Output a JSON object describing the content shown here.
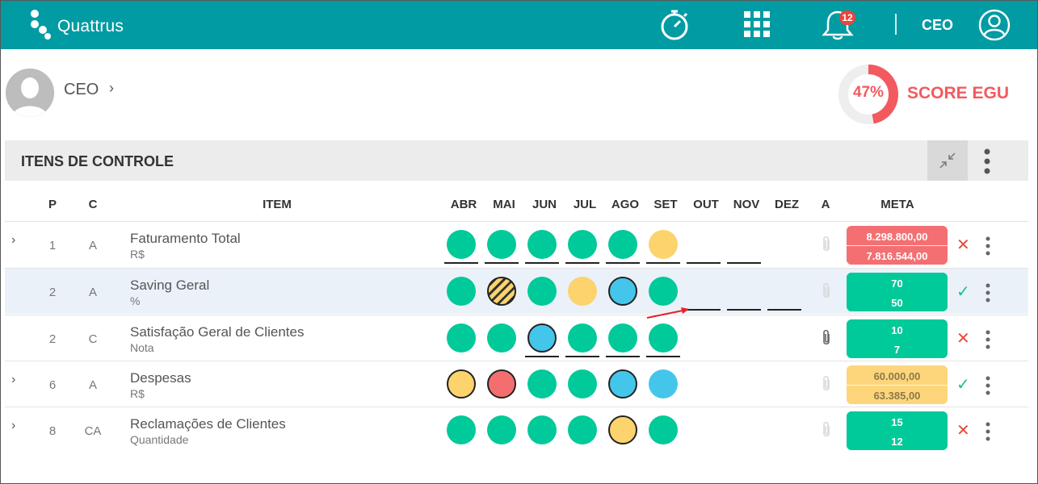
{
  "header": {
    "app_name": "Quattrus",
    "notification_count": "12",
    "role": "CEO",
    "colors": {
      "bar": "#009ba3"
    }
  },
  "profile": {
    "name": "CEO"
  },
  "score": {
    "percent": 47,
    "percent_label": "47%",
    "label": "SCORE EGU",
    "color": "#f25a5f"
  },
  "section": {
    "title": "ITENS DE CONTROLE"
  },
  "table": {
    "headers": {
      "p": "P",
      "c": "C",
      "item": "ITEM",
      "months": [
        "ABR",
        "MAI",
        "JUN",
        "JUL",
        "AGO",
        "SET",
        "OUT",
        "NOV",
        "DEZ"
      ],
      "a": "A",
      "meta": "META"
    },
    "colors": {
      "green": "#00c99a",
      "yellow": "#fcd36c",
      "blue": "#44c6ea",
      "red": "#f36e6e",
      "meta_red": "#f46f72",
      "meta_green": "#00c99a",
      "meta_yellow": "#fdd57a"
    },
    "rows": [
      {
        "expand": "›",
        "p": "1",
        "c": "A",
        "name": "Faturamento Total",
        "unit": "R$",
        "months": [
          "green",
          "green",
          "green",
          "green",
          "green",
          "yellow",
          "",
          "",
          ""
        ],
        "bordered": [
          false,
          false,
          false,
          false,
          false,
          false
        ],
        "underlined": [
          true,
          true,
          true,
          true,
          true,
          true,
          true,
          true,
          false
        ],
        "clip_active": false,
        "meta": {
          "v1": "8.298.800,00",
          "v2": "7.816.544,00",
          "color": "meta_red"
        },
        "status": "✕",
        "status_color": "#e74c3c"
      },
      {
        "expand": "",
        "p": "2",
        "c": "A",
        "name": "Saving Geral",
        "unit": "%",
        "months": [
          "green",
          "striped",
          "green",
          "yellow",
          "blue",
          "green",
          "",
          "",
          ""
        ],
        "bordered": [
          false,
          true,
          false,
          false,
          true,
          false
        ],
        "underlined": [
          false,
          false,
          false,
          false,
          false,
          false,
          true,
          true,
          true
        ],
        "clip_active": false,
        "meta": {
          "v1": "70",
          "v2": "50",
          "color": "meta_green"
        },
        "status": "✓",
        "status_color": "#1bbf8c"
      },
      {
        "expand": "",
        "p": "2",
        "c": "C",
        "name": "Satisfação Geral de Clientes",
        "unit": "Nota",
        "months": [
          "green",
          "green",
          "blue",
          "green",
          "green",
          "green",
          "",
          "",
          ""
        ],
        "bordered": [
          false,
          false,
          true,
          false,
          false,
          false
        ],
        "underlined": [
          false,
          false,
          true,
          true,
          true,
          true,
          false,
          false,
          false
        ],
        "clip_active": true,
        "meta": {
          "v1": "10",
          "v2": "7",
          "color": "meta_green"
        },
        "status": "✕",
        "status_color": "#e74c3c"
      },
      {
        "expand": "›",
        "p": "6",
        "c": "A",
        "name": "Despesas",
        "unit": "R$",
        "months": [
          "yellow",
          "red",
          "green",
          "green",
          "blue",
          "blue",
          "",
          "",
          ""
        ],
        "bordered": [
          true,
          true,
          false,
          false,
          true,
          false
        ],
        "underlined": [
          false,
          false,
          false,
          false,
          false,
          false,
          false,
          false,
          false
        ],
        "clip_active": false,
        "meta": {
          "v1": "60.000,00",
          "v2": "63.385,00",
          "color": "meta_yellow"
        },
        "status": "✓",
        "status_color": "#1bbf8c"
      },
      {
        "expand": "›",
        "p": "8",
        "c": "CA",
        "name": "Reclamações de Clientes",
        "unit": "Quantidade",
        "months": [
          "green",
          "green",
          "green",
          "green",
          "yellow",
          "green",
          "",
          "",
          ""
        ],
        "bordered": [
          false,
          false,
          false,
          false,
          true,
          false
        ],
        "underlined": [
          false,
          false,
          false,
          false,
          false,
          false,
          false,
          false,
          false
        ],
        "clip_active": false,
        "meta": {
          "v1": "15",
          "v2": "12",
          "color": "meta_green"
        },
        "status": "✕",
        "status_color": "#e74c3c"
      }
    ]
  }
}
